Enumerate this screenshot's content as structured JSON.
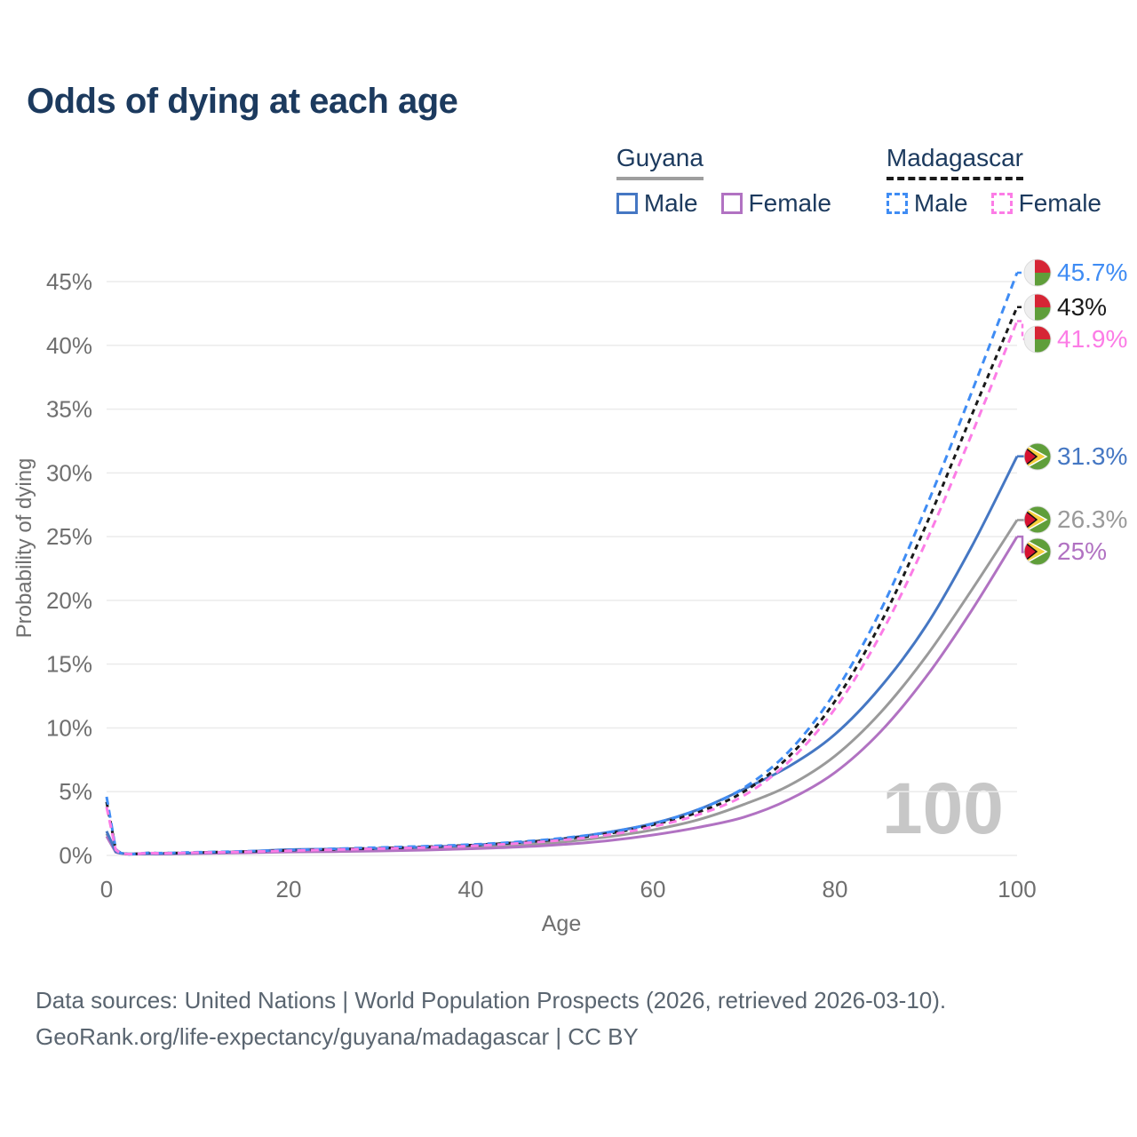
{
  "title": "Odds of dying at each age",
  "legend": {
    "groups": [
      {
        "label": "Guyana",
        "line_style": "solid",
        "underline_color": "#9e9e9e",
        "items": [
          {
            "label": "Male",
            "color": "#4577c3"
          },
          {
            "label": "Female",
            "color": "#b172c2"
          }
        ]
      },
      {
        "label": "Madagascar",
        "line_style": "dashed",
        "underline_color": "#1a1a1a",
        "items": [
          {
            "label": "Male",
            "color": "#3f8cf4"
          },
          {
            "label": "Female",
            "color": "#fc7ce6"
          }
        ]
      }
    ]
  },
  "watermark": "100",
  "footer": {
    "line1": "Data sources: United Nations | World Population Prospects (2026, retrieved 2026-03-10).",
    "line2": "GeoRank.org/life-expectancy/guyana/madagascar | CC BY"
  },
  "colors": {
    "title_text": "#1c3a5e",
    "axis_text": "#6f6f6f",
    "gridline": "#ebebeb",
    "watermark": "#c7c7c7",
    "footer_text": "#5a6570"
  },
  "chart_data": {
    "type": "line",
    "title": "Odds of dying at each age",
    "xlabel": "Age",
    "ylabel": "Probability of dying",
    "xlim": [
      0,
      100
    ],
    "ylim": [
      0,
      46
    ],
    "xticks": [
      0,
      20,
      40,
      60,
      80,
      100
    ],
    "yticks": [
      "0%",
      "5%",
      "10%",
      "15%",
      "20%",
      "25%",
      "30%",
      "35%",
      "40%",
      "45%"
    ],
    "grid": "horizontal",
    "legend_position": "top-right",
    "x": [
      0,
      1,
      5,
      10,
      15,
      20,
      25,
      30,
      35,
      40,
      45,
      50,
      55,
      60,
      65,
      70,
      75,
      80,
      85,
      90,
      95,
      100
    ],
    "series": [
      {
        "name": "Madagascar Male",
        "country": "Madagascar",
        "sex": "Male",
        "color": "#3f8cf4",
        "dash": "dashed",
        "flag": "madagascar",
        "end_label": "45.7%",
        "values": [
          4.6,
          0.5,
          0.2,
          0.25,
          0.32,
          0.42,
          0.52,
          0.62,
          0.72,
          0.85,
          1.05,
          1.35,
          1.8,
          2.5,
          3.6,
          5.3,
          8.2,
          12.8,
          19.2,
          27.3,
          36.3,
          45.7
        ]
      },
      {
        "name": "Madagascar Both sexes",
        "country": "Madagascar",
        "sex": "Both",
        "color": "#1a1a1a",
        "dash": "dashed",
        "flag": "madagascar",
        "end_label": "43%",
        "values": [
          4.2,
          0.48,
          0.19,
          0.23,
          0.3,
          0.4,
          0.48,
          0.57,
          0.67,
          0.8,
          1.0,
          1.28,
          1.7,
          2.4,
          3.4,
          5.0,
          7.8,
          12.1,
          18.2,
          25.9,
          34.5,
          43.0
        ]
      },
      {
        "name": "Madagascar Female",
        "country": "Madagascar",
        "sex": "Female",
        "color": "#fc7ce6",
        "dash": "dashed",
        "flag": "madagascar",
        "end_label": "41.9%",
        "values": [
          3.8,
          0.45,
          0.18,
          0.22,
          0.28,
          0.37,
          0.45,
          0.53,
          0.62,
          0.74,
          0.93,
          1.2,
          1.6,
          2.25,
          3.2,
          4.7,
          7.4,
          11.5,
          17.3,
          24.6,
          33.0,
          41.9
        ]
      },
      {
        "name": "Guyana Male",
        "country": "Guyana",
        "sex": "Male",
        "color": "#4577c3",
        "dash": "solid",
        "flag": "guyana",
        "end_label": "31.3%",
        "values": [
          1.9,
          0.3,
          0.15,
          0.2,
          0.3,
          0.45,
          0.5,
          0.55,
          0.65,
          0.8,
          1.0,
          1.3,
          1.8,
          2.5,
          3.6,
          5.2,
          7.0,
          9.5,
          13.2,
          18.0,
          24.2,
          31.3
        ]
      },
      {
        "name": "Guyana Both sexes",
        "country": "Guyana",
        "sex": "Both",
        "color": "#9a9a9a",
        "dash": "solid",
        "flag": "guyana",
        "end_label": "26.3%",
        "values": [
          1.7,
          0.28,
          0.13,
          0.17,
          0.25,
          0.35,
          0.4,
          0.45,
          0.55,
          0.65,
          0.8,
          1.05,
          1.45,
          2.0,
          2.8,
          4.0,
          5.5,
          7.8,
          11.2,
          15.6,
          20.8,
          26.3
        ]
      },
      {
        "name": "Guyana Female",
        "country": "Guyana",
        "sex": "Female",
        "color": "#b172c2",
        "dash": "solid",
        "flag": "guyana",
        "end_label": "25%",
        "values": [
          1.5,
          0.25,
          0.12,
          0.15,
          0.2,
          0.27,
          0.3,
          0.35,
          0.42,
          0.52,
          0.65,
          0.85,
          1.15,
          1.6,
          2.2,
          3.0,
          4.4,
          6.5,
          9.7,
          14.0,
          19.2,
          25.0
        ]
      }
    ]
  }
}
